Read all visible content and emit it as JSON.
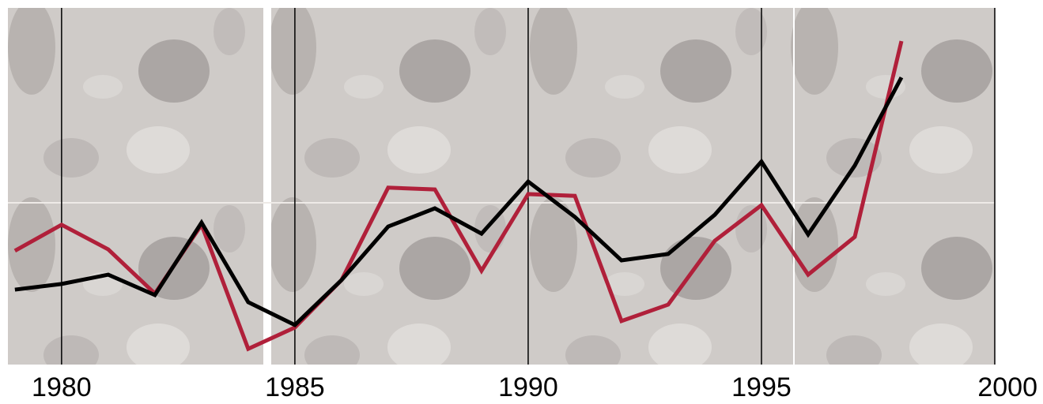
{
  "chart_data": {
    "type": "line",
    "x": [
      1979,
      1980,
      1981,
      1982,
      1983,
      1984,
      1985,
      1986,
      1987,
      1988,
      1989,
      1990,
      1991,
      1992,
      1993,
      1994,
      1995,
      1996,
      1997,
      1998
    ],
    "series": [
      {
        "color": "#b0203a",
        "values": [
          31.9,
          39.2,
          32.3,
          19.9,
          39.2,
          4.4,
          10.4,
          23.7,
          49.6,
          49.1,
          26.3,
          47.8,
          47.3,
          12.2,
          16.8,
          34.7,
          44.7,
          25.2,
          35.8,
          90.7
        ]
      },
      {
        "color": "#000000",
        "values": [
          21.0,
          22.6,
          25.2,
          19.5,
          39.8,
          17.5,
          11.1,
          23.7,
          38.7,
          43.8,
          36.7,
          51.3,
          41.4,
          29.2,
          31.0,
          42.0,
          56.9,
          36.5,
          55.8,
          80.5
        ]
      }
    ],
    "xlim": [
      1978.85,
      2000
    ],
    "xticks": [
      1980,
      1985,
      1990,
      1995,
      2000
    ],
    "ylim": [
      0,
      100
    ],
    "grid": true
  }
}
